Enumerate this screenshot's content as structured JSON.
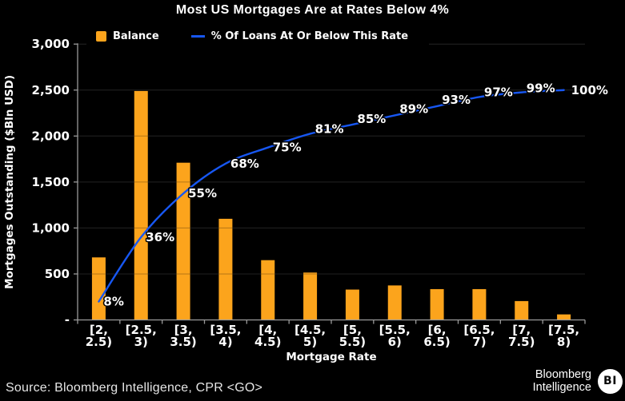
{
  "title": "Most US Mortgages Are at Rates Below 4%",
  "legend": {
    "balance_label": "Balance",
    "line_label": "% Of Loans At Or Below This Rate"
  },
  "chart_data": {
    "type": "bar+line",
    "title": "Most US Mortgages Are at Rates Below 4%",
    "categories": [
      "[2, 2.5)",
      "[2.5, 3)",
      "[3, 3.5)",
      "[3.5, 4)",
      "[4, 4.5)",
      "[4.5, 5)",
      "[5, 5.5)",
      "[5.5, 6)",
      "[6, 6.5)",
      "[6.5, 7)",
      "[7, 7.5)",
      "[7.5, 8)"
    ],
    "category_lines": [
      [
        "[2,",
        "2.5)"
      ],
      [
        "[2.5,",
        "3)"
      ],
      [
        "[3,",
        "3.5)"
      ],
      [
        "[3.5,",
        "4)"
      ],
      [
        "[4,",
        "4.5)"
      ],
      [
        "[4.5,",
        "5)"
      ],
      [
        "[5,",
        "5.5)"
      ],
      [
        "[5.5,",
        "6)"
      ],
      [
        "[6,",
        "6.5)"
      ],
      [
        "[6.5,",
        "7)"
      ],
      [
        "[7,",
        "7.5)"
      ],
      [
        "[7.5,",
        "8)"
      ]
    ],
    "series": [
      {
        "name": "Balance",
        "type": "bar",
        "unit": "$Bln",
        "values": [
          680,
          2490,
          1710,
          1100,
          650,
          515,
          330,
          375,
          335,
          335,
          205,
          60
        ]
      },
      {
        "name": "% Of Loans At Or Below This Rate",
        "type": "line",
        "unit": "%",
        "values": [
          8,
          36,
          55,
          68,
          75,
          81,
          85,
          89,
          93,
          97,
          99,
          100
        ],
        "point_labels": [
          "8%",
          "36%",
          "55%",
          "68%",
          "75%",
          "81%",
          "85%",
          "89%",
          "93%",
          "97%",
          "99%",
          "100%"
        ]
      }
    ],
    "xlabel": "Mortgage Rate",
    "ylabel": "Mortgages Outstanding ($Bln USD)",
    "y_axis": {
      "tick_values": [
        3000,
        2500,
        2000,
        1500,
        1000,
        500,
        0
      ],
      "tick_labels": [
        "3,000",
        "2,500",
        "2,000",
        "1,500",
        "1,000",
        "500",
        "-"
      ],
      "range": [
        0,
        3000
      ]
    },
    "secondary_axis": {
      "visible": false,
      "pct_100_equals_left_value": 2500
    },
    "grid": true,
    "legend_position": "top-left"
  },
  "colors": {
    "background": "#000000",
    "bar": "#FCA41C",
    "line": "#1757F2",
    "text": "#FFFFFF",
    "grid": "#2E2E2E",
    "axis": "#9A9A9A",
    "source_text": "#E6E6E6",
    "badge_bg": "#FFFFFF",
    "badge_text": "#0A0A0A"
  },
  "footer": {
    "source": "Source: Bloomberg Intelligence, CPR <GO>",
    "brand_line1": "Bloomberg",
    "brand_line2": "Intelligence",
    "badge": "BI"
  }
}
